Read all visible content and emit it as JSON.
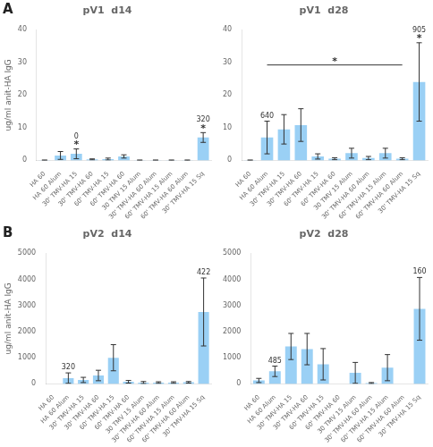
{
  "chart_data": [
    {
      "type": "bar",
      "title": "pV1  d14",
      "panel_label": "A",
      "ylabel": "ug/ml anit-HA IgG",
      "categories": [
        "HA 60",
        "HA 60 Alum",
        "30' TMV-HA 15",
        "30' TMV-HA 60",
        "60' TMV-HA 15",
        "60' TMV-HA 60",
        "30 TMV 15 Alum",
        "30' TMV-HA 60 Alum",
        "60' TMV-HA 15 Alum",
        "60' TMV-HA 60 Alum",
        "30' TMV-HA 15 Sq"
      ],
      "values": [
        0.05,
        1.5,
        2.0,
        0.3,
        0.4,
        1.2,
        0.05,
        0.05,
        0.05,
        0.05,
        7.0
      ],
      "errors": [
        0.05,
        1.2,
        1.5,
        0.15,
        0.3,
        0.5,
        0.05,
        0.05,
        0.05,
        0.05,
        1.5
      ],
      "ylim": [
        0,
        40
      ],
      "yticks": [
        0,
        10,
        20,
        30,
        40
      ],
      "grid": false,
      "legend": false,
      "annotations": [
        {
          "category": "30' TMV-HA 15",
          "texts": [
            "*",
            "0"
          ]
        },
        {
          "category": "30' TMV-HA 15 Sq",
          "texts": [
            "*",
            "320"
          ]
        }
      ]
    },
    {
      "type": "bar",
      "title": "pV1  d28",
      "categories": [
        "HA 60",
        "HA 60 Alum",
        "30' TMV-HA 15",
        "30' TMV-HA 60",
        "60' TMV-HA 15",
        "60' TMV-HA 60",
        "30 TMV 15 Alum",
        "30' TMV-HA 60 Alum",
        "60' TMV-HA 15 Alum",
        "60' TMV-HA 60 Alum",
        "30' TMV-HA 15 Sq"
      ],
      "values": [
        0.05,
        7.0,
        9.5,
        10.8,
        1.2,
        0.5,
        2.2,
        0.7,
        2.2,
        0.5,
        24.0
      ],
      "errors": [
        0.05,
        5.0,
        4.5,
        5.0,
        0.8,
        0.3,
        1.5,
        0.5,
        1.5,
        0.3,
        12.0
      ],
      "ylim": [
        0,
        40
      ],
      "yticks": [
        0,
        10,
        20,
        30,
        40
      ],
      "grid": false,
      "legend": false,
      "annotations": [
        {
          "category": "HA 60 Alum",
          "texts": [
            "640"
          ]
        },
        {
          "category": "30' TMV-HA 15 Sq",
          "texts": [
            "*",
            "905"
          ]
        }
      ],
      "sig_line": {
        "from": "HA 60 Alum",
        "to": "60' TMV-HA 60 Alum",
        "y": 29.2,
        "text": "*"
      }
    },
    {
      "type": "bar",
      "title": "pV2  d14",
      "panel_label": "B",
      "ylabel": "ug/ml anit-HA IgG",
      "categories": [
        "HA 60",
        "HA 60 Alum",
        "30' TMV-HA 15",
        "30' TMV-HA 60",
        "60' TMV-HA 15",
        "60' TMV-HA 60",
        "30 TMV 15 Alum",
        "30' TMV-HA 60 Alum",
        "60' TMV-HA 15 Alum",
        "60' TMV-HA 60 Alum",
        "30' TMV-HA 15 Sq"
      ],
      "values": [
        0.0,
        220,
        150,
        320,
        1000,
        80,
        50,
        50,
        50,
        60,
        2750
      ],
      "errors": [
        0.0,
        200,
        100,
        200,
        500,
        50,
        40,
        30,
        30,
        30,
        1300
      ],
      "ylim": [
        0,
        5000
      ],
      "yticks": [
        0,
        1000,
        2000,
        3000,
        4000,
        5000
      ],
      "grid": false,
      "legend": false,
      "annotations": [
        {
          "category": "HA 60 Alum",
          "texts": [
            "320"
          ]
        },
        {
          "category": "30' TMV-HA 15 Sq",
          "texts": [
            "422"
          ]
        }
      ]
    },
    {
      "type": "bar",
      "title": "pV2  d28",
      "categories": [
        "HA 60",
        "HA 60 Alum",
        "30' TMV-HA 15",
        "30' TMV-HA 60",
        "60' TMV-HA 15",
        "60' TMV-HA 60",
        "30 TMV 15 Alum",
        "30' TMV-HA 60 Alum",
        "60' TMV-HA 15 Alum",
        "60' TMV-HA 60 Alum",
        "30' TMV-HA 15 Sq"
      ],
      "values": [
        130,
        480,
        1430,
        1330,
        750,
        0.0,
        420,
        30,
        620,
        0.0,
        2870
      ],
      "errors": [
        80,
        200,
        500,
        600,
        600,
        0.0,
        400,
        20,
        500,
        0.0,
        1200
      ],
      "ylim": [
        0,
        5000
      ],
      "yticks": [
        0,
        1000,
        2000,
        3000,
        4000,
        5000
      ],
      "grid": false,
      "legend": false,
      "annotations": [
        {
          "category": "HA 60 Alum",
          "texts": [
            "485"
          ]
        },
        {
          "category": "30' TMV-HA 15 Sq",
          "texts": [
            "160"
          ]
        }
      ]
    }
  ]
}
